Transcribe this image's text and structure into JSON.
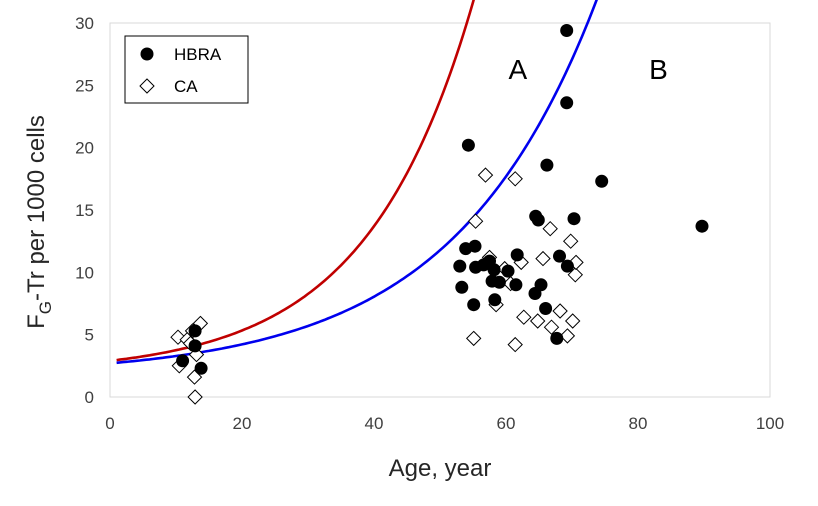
{
  "chart_data": {
    "type": "scatter",
    "xlabel": "Age, year",
    "ylabel_main": "F",
    "ylabel_sub": "G",
    "ylabel_rest": "-Tr per 1000 cells",
    "xlim": [
      0,
      100
    ],
    "ylim": [
      0,
      30
    ],
    "x_ticks": [
      0,
      20,
      40,
      60,
      80,
      100
    ],
    "y_ticks": [
      0,
      5,
      10,
      15,
      20,
      25,
      30
    ],
    "grid": false,
    "legend_position": "top-left",
    "series": [
      {
        "name": "HBRA",
        "marker": "filled-circle",
        "color": "#000000",
        "points": [
          [
            11,
            2.9
          ],
          [
            12.9,
            4.1
          ],
          [
            12.9,
            5.3
          ],
          [
            13.8,
            2.3
          ],
          [
            54.3,
            20.2
          ],
          [
            53,
            10.5
          ],
          [
            53.3,
            8.8
          ],
          [
            53.9,
            11.9
          ],
          [
            55.3,
            12.1
          ],
          [
            55.1,
            7.4
          ],
          [
            55.4,
            10.4
          ],
          [
            56.6,
            10.6
          ],
          [
            57.5,
            10.9
          ],
          [
            57.9,
            9.3
          ],
          [
            58.3,
            7.8
          ],
          [
            58.2,
            10.2
          ],
          [
            59,
            9.2
          ],
          [
            60.3,
            10.1
          ],
          [
            61.5,
            9
          ],
          [
            61.7,
            11.4
          ],
          [
            64.5,
            14.5
          ],
          [
            64.9,
            14.2
          ],
          [
            64.4,
            8.3
          ],
          [
            65.3,
            9
          ],
          [
            66,
            7.1
          ],
          [
            66.2,
            18.6
          ],
          [
            67.7,
            4.7
          ],
          [
            68.1,
            11.3
          ],
          [
            69.2,
            23.6
          ],
          [
            69.2,
            29.4
          ],
          [
            69.3,
            10.5
          ],
          [
            70.3,
            14.3
          ],
          [
            74.5,
            17.3
          ],
          [
            89.7,
            13.7
          ]
        ]
      },
      {
        "name": "CA",
        "marker": "open-diamond",
        "color": "#000000",
        "points": [
          [
            10.3,
            4.8
          ],
          [
            10.5,
            2.5
          ],
          [
            11.7,
            4.6
          ],
          [
            12.2,
            4.3
          ],
          [
            12.5,
            5.3
          ],
          [
            12.8,
            1.6
          ],
          [
            13.1,
            3.4
          ],
          [
            13.7,
            5.9
          ],
          [
            12.9,
            0
          ],
          [
            55.1,
            4.7
          ],
          [
            55.4,
            14.1
          ],
          [
            56.9,
            17.8
          ],
          [
            57.5,
            11.2
          ],
          [
            58.5,
            7.4
          ],
          [
            59.8,
            10.3
          ],
          [
            60.7,
            9.1
          ],
          [
            61.4,
            17.5
          ],
          [
            61.4,
            4.2
          ],
          [
            62.3,
            10.8
          ],
          [
            62.7,
            6.4
          ],
          [
            64.8,
            6.1
          ],
          [
            65.6,
            11.1
          ],
          [
            66.7,
            13.5
          ],
          [
            66.9,
            5.6
          ],
          [
            68.2,
            6.9
          ],
          [
            69.3,
            4.9
          ],
          [
            69.8,
            12.5
          ],
          [
            70.1,
            6.1
          ],
          [
            70.5,
            9.8
          ],
          [
            70.6,
            10.8
          ]
        ]
      }
    ],
    "curves": [
      {
        "label": "A",
        "color": "#c00000",
        "base": 2.9,
        "k": 0.0617,
        "x_range": [
          1,
          69.5
        ],
        "label_x": 61.8,
        "label_y": 26.3
      },
      {
        "label": "B",
        "color": "#0000ee",
        "base": 2.7,
        "k": 0.0462,
        "x_range": [
          1,
          95.5
        ],
        "label_x": 83.1,
        "label_y": 26.3
      }
    ]
  }
}
